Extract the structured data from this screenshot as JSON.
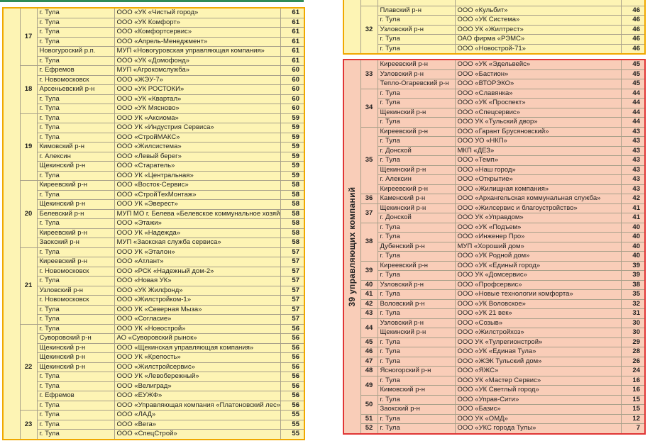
{
  "left_table": [
    {
      "rank": "17",
      "rows": [
        [
          "г. Тула",
          "ООО «УК «Чистый город»",
          "61"
        ],
        [
          "г. Тула",
          "ООО «УК Комфорт»",
          "61"
        ],
        [
          "г. Тула",
          "ООО «Комфортсервис»",
          "61"
        ],
        [
          "г. Тула",
          "ООО «Апрель-Менеджмент»",
          "61"
        ],
        [
          "Новогуроский р.п.",
          "МУП «Новогуровская управляющая компания»",
          "61"
        ],
        [
          "г. Тула",
          "ООО «УК «Домофонд»",
          "61"
        ]
      ]
    },
    {
      "rank": "18",
      "rows": [
        [
          "г. Ефремов",
          "МУП «Агрокомслужба»",
          "60"
        ],
        [
          "г. Новомосковск",
          "ООО «ЖЭУ-7»",
          "60"
        ],
        [
          "Арсеньевский р-н",
          "ООО «УК РОСТОКИ»",
          "60"
        ],
        [
          "г. Тула",
          "ООО «УК «Квартал»",
          "60"
        ],
        [
          "г. Тула",
          "ООО «УК Мясново»",
          "60"
        ]
      ]
    },
    {
      "rank": "19",
      "rows": [
        [
          "г. Тула",
          "ООО УК «Аксиома»",
          "59"
        ],
        [
          "г. Тула",
          "ООО УК «Индустрия Сервиса»",
          "59"
        ],
        [
          "г. Тула",
          "ООО «СтройМАКС»",
          "59"
        ],
        [
          "Кимовский р-н",
          "ООО «Жилсистема»",
          "59"
        ],
        [
          "г. Алексин",
          "ООО «Левый берег»",
          "59"
        ],
        [
          "Щекинский р-н",
          "ООО «Старатель»",
          "59"
        ],
        [
          "г. Тула",
          "ООО УК «Центральная»",
          "59"
        ]
      ]
    },
    {
      "rank": "20",
      "rows": [
        [
          "Киреевский р-н",
          "ООО «Восток-Сервис»",
          "58"
        ],
        [
          "г. Тула",
          "ООО «СтройТехМонтаж»",
          "58"
        ],
        [
          "Щекинский р-н",
          "ООО УК «Эверест»",
          "58"
        ],
        [
          "Белевский р-н",
          "МУП МО г. Белева «Белевское коммунальное хозяйство»",
          "58"
        ],
        [
          "г. Тула",
          "ООО «Этажи»",
          "58"
        ],
        [
          "Киреевский р-н",
          "ООО УК «Надежда»",
          "58"
        ],
        [
          "Заокский р-н",
          "МУП «Заокская служба сервиса»",
          "58"
        ]
      ]
    },
    {
      "rank": "21",
      "rows": [
        [
          "г. Тула",
          "ООО УК «Эталон»",
          "57"
        ],
        [
          "Киреевский р-н",
          "ООО «Атлант»",
          "57"
        ],
        [
          "г. Новомосковск",
          "ООО «РСК «Надежный дом-2»",
          "57"
        ],
        [
          "г. Тула",
          "ООО «Новая УК»",
          "57"
        ],
        [
          "Узловский р-н",
          "ООО «УК Жилфонд»",
          "57"
        ],
        [
          "г. Новомосковск",
          "ООО «Жилстройком-1»",
          "57"
        ],
        [
          "г. Тула",
          "ООО УК «Северная Мыза»",
          "57"
        ],
        [
          "г. Тула",
          "ООО «Согласие»",
          "57"
        ]
      ]
    },
    {
      "rank": "22",
      "rows": [
        [
          "г. Тула",
          "ООО УК «Новострой»",
          "56"
        ],
        [
          "Суворовский р-н",
          "АО «Суворовский рынок»",
          "56"
        ],
        [
          "Щекинский р-н",
          "ООО «Щекинская управляющая компания»",
          "56"
        ],
        [
          "Щекинский р-н",
          "ООО УК «Крепость»",
          "56"
        ],
        [
          "Щекинский р-н",
          "ООО «Жилстройсервис»",
          "56"
        ],
        [
          "г. Тула",
          "ООО УК «Левобережный»",
          "56"
        ],
        [
          "г. Тула",
          "ООО «Велиград»",
          "56"
        ],
        [
          "г. Ефремов",
          "ООО «ЕУЖФ»",
          "56"
        ],
        [
          "г. Тула",
          "ООО «Управляющая компания «Платоновский лес»",
          "56"
        ]
      ]
    },
    {
      "rank": "23",
      "rows": [
        [
          "г. Тула",
          "ООО «ЛАД»",
          "55"
        ],
        [
          "г. Тула",
          "ООО «Вега»",
          "55"
        ],
        [
          "г. Тула",
          "ООО «СпецСтрой»",
          "55"
        ]
      ]
    }
  ],
  "right_top_table": [
    {
      "rank": "32",
      "rows": [
        [
          "Плавский р-н",
          "ООО «Кульбит»",
          "46"
        ],
        [
          "г. Тула",
          "ООО «УК Система»",
          "46"
        ],
        [
          "Узловский р-н",
          "ООО УК «Жилтрест»",
          "46"
        ],
        [
          "г. Тула",
          "ОАО фирма «РЭМС»",
          "46"
        ],
        [
          "г. Тула",
          "ООО «Новострой-71»",
          "46"
        ]
      ]
    }
  ],
  "right_bottom_table": {
    "group_label": "39 управляющих компаний",
    "groups": [
      {
        "rank": "33",
        "rows": [
          [
            "Киреевский р-н",
            "ООО «УК «Эдельвейс»",
            "45"
          ],
          [
            "Узловский р-н",
            "ООО «Бастион»",
            "45"
          ],
          [
            "Тепло-Огаревский р-н",
            "ООО «ВТОРЭКО»",
            "45"
          ]
        ]
      },
      {
        "rank": "34",
        "rows": [
          [
            "г. Тула",
            "ООО «Славянка»",
            "44"
          ],
          [
            "г. Тула",
            "ООО «УК «Проспект»",
            "44"
          ],
          [
            "Щекинский р-н",
            "ООО «Спецсервис»",
            "44"
          ],
          [
            "г. Тула",
            "ООО УК «Тульский двор»",
            "44"
          ]
        ]
      },
      {
        "rank": "35",
        "rows": [
          [
            "Киреевский р-н",
            "ООО «Гарант Брусяновский»",
            "43"
          ],
          [
            "г. Тула",
            "ООО УО «НКП»",
            "43"
          ],
          [
            "г. Донской",
            "МКП «ДЕЗ»",
            "43"
          ],
          [
            "г. Тула",
            "ООО «Темп»",
            "43"
          ],
          [
            "Щекинский р-н",
            "ООО «Наш город»",
            "43"
          ],
          [
            "г. Алексин",
            "ООО «Открытие»",
            "43"
          ],
          [
            "Киреевский р-н",
            "ООО «Жилищная компания»",
            "43"
          ]
        ]
      },
      {
        "rank": "36",
        "rows": [
          [
            "Каменский р-н",
            "ООО «Архангельская коммунальная служба»",
            "42"
          ]
        ]
      },
      {
        "rank": "37",
        "rows": [
          [
            "Щекинский р-н",
            "ООО «Жилсервис и благоустройство»",
            "41"
          ],
          [
            "г. Донской",
            "ООО УК «Управдом»",
            "41"
          ]
        ]
      },
      {
        "rank": "38",
        "rows": [
          [
            "г. Тула",
            "ООО «УК «Подъем»",
            "40"
          ],
          [
            "г. Тула",
            "ООО «Инженер Про»",
            "40"
          ],
          [
            "Дубенский р-н",
            "МУП «Хороший дом»",
            "40"
          ],
          [
            "г. Тула",
            "ООО «УК Родной дом»",
            "40"
          ]
        ]
      },
      {
        "rank": "39",
        "rows": [
          [
            "Киреевский р-н",
            "ООО «УК «Единый город»",
            "39"
          ],
          [
            "г. Тула",
            "ООО УК «Домсервис»",
            "39"
          ]
        ]
      },
      {
        "rank": "40",
        "rows": [
          [
            "Узловский р-н",
            "ООО «Профсервис»",
            "38"
          ]
        ]
      },
      {
        "rank": "41",
        "rows": [
          [
            "г. Тула",
            "ООО «Новые технологии комфорта»",
            "35"
          ]
        ]
      },
      {
        "rank": "42",
        "rows": [
          [
            "Воловский р-н",
            "ООО «УК Воловское»",
            "32"
          ]
        ]
      },
      {
        "rank": "43",
        "rows": [
          [
            "г. Тула",
            "ООО «УК 21 век»",
            "31"
          ]
        ]
      },
      {
        "rank": "44",
        "rows": [
          [
            "Узловский р-н",
            "ООО «Созыв»",
            "30"
          ],
          [
            "Щекинский р-н",
            "ООО «Жилстройхоз»",
            "30"
          ]
        ]
      },
      {
        "rank": "45",
        "rows": [
          [
            "г. Тула",
            "ООО УК «Тулрегионстрой»",
            "29"
          ]
        ]
      },
      {
        "rank": "46",
        "rows": [
          [
            "г. Тула",
            "ООО «УК «Единая Тула»",
            "28"
          ]
        ]
      },
      {
        "rank": "47",
        "rows": [
          [
            "г. Тула",
            "ООО «ЖЭК Тульский дом»",
            "26"
          ]
        ]
      },
      {
        "rank": "48",
        "rows": [
          [
            "Ясногорский р-н",
            "ООО «ЯЖС»",
            "24"
          ]
        ]
      },
      {
        "rank": "49",
        "rows": [
          [
            "г. Тула",
            "ООО УК «Мастер Сервис»",
            "16"
          ],
          [
            "Кимовский р-н",
            "ООО «УК Светлый город»",
            "16"
          ]
        ]
      },
      {
        "rank": "50",
        "rows": [
          [
            "г. Тула",
            "ООО «Управ-Сити»",
            "15"
          ],
          [
            "Заокский р-н",
            "ООО «Базис»",
            "15"
          ]
        ]
      },
      {
        "rank": "51",
        "rows": [
          [
            "г. Тула",
            "ООО УК «ОМД»",
            "12"
          ]
        ]
      },
      {
        "rank": "52",
        "rows": [
          [
            "г. Тула",
            "ООО «УКС города Тулы»",
            "7"
          ]
        ]
      }
    ]
  },
  "colors": {
    "yellow_bg": "#fdf4b4",
    "yellow_border": "#f0a800",
    "red_bg": "#f9cdb8",
    "red_border": "#e03535",
    "top_bar": "#2e8b57"
  }
}
